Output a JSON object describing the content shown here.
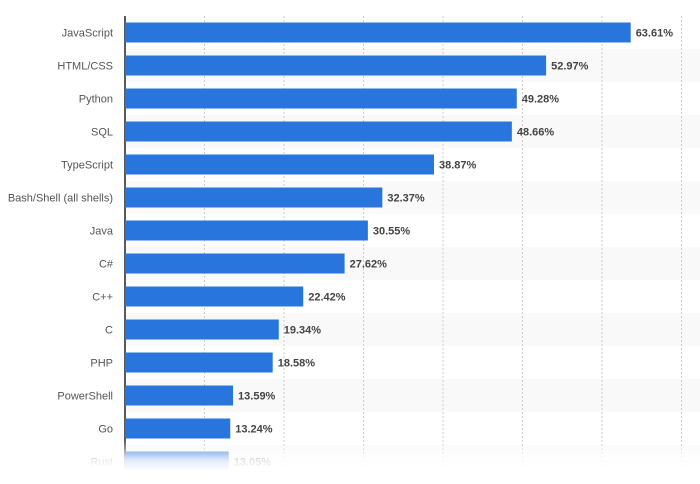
{
  "chart_data": {
    "type": "bar",
    "orientation": "horizontal",
    "categories": [
      "JavaScript",
      "HTML/CSS",
      "Python",
      "SQL",
      "TypeScript",
      "Bash/Shell (all shells)",
      "Java",
      "C#",
      "C++",
      "C",
      "PHP",
      "PowerShell",
      "Go",
      "Rust"
    ],
    "values": [
      63.61,
      52.97,
      49.28,
      48.66,
      38.87,
      32.37,
      30.55,
      27.62,
      22.42,
      19.34,
      18.58,
      13.59,
      13.24,
      13.05
    ],
    "data_labels": [
      "63.61%",
      "52.97%",
      "49.28%",
      "48.66%",
      "38.87%",
      "32.37%",
      "30.55%",
      "27.62%",
      "22.42%",
      "19.34%",
      "18.58%",
      "13.59%",
      "13.24%",
      "13.05%"
    ],
    "xlim": [
      0,
      70
    ],
    "grid": true,
    "bar_color": "#2876dd",
    "title": "",
    "xlabel": "",
    "ylabel": ""
  }
}
